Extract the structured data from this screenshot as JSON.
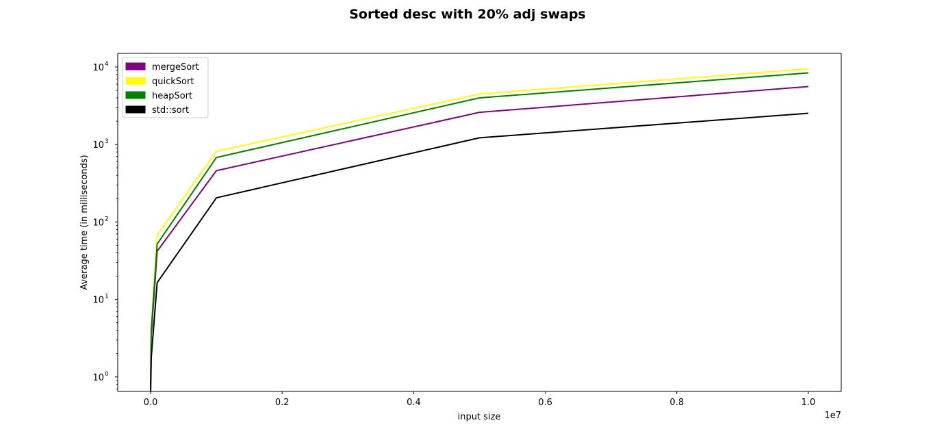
{
  "chart_data": {
    "type": "line",
    "title": "Sorted desc with 20% adj swaps",
    "xlabel": "input size",
    "ylabel": "Average time (in milliseconds)",
    "x_scale_note": "1e7",
    "y_scale": "log",
    "xlim": [
      -500000,
      10500000
    ],
    "ylim": [
      0.65,
      15000
    ],
    "x_ticks": [
      0,
      2000000,
      4000000,
      6000000,
      8000000,
      10000000
    ],
    "x_tick_labels": [
      "0.0",
      "0.2",
      "0.4",
      "0.6",
      "0.8",
      "1.0"
    ],
    "y_ticks": [
      1,
      10,
      100,
      1000,
      10000
    ],
    "y_tick_base": "10",
    "y_tick_exponents": [
      "0",
      "1",
      "2",
      "3",
      "4"
    ],
    "grid": false,
    "legend_position": "top-left",
    "x": [
      100,
      1000,
      10000,
      100000,
      1000000,
      5000000,
      10000000
    ],
    "series": [
      {
        "name": "mergeSort",
        "color": "#800080",
        "values": [
          0.7,
          0.9,
          3.5,
          42,
          460,
          2600,
          5600
        ]
      },
      {
        "name": "quickSort",
        "color": "#ffff00",
        "values": [
          0.75,
          1.0,
          4.5,
          68,
          820,
          4500,
          9500
        ]
      },
      {
        "name": "heapSort",
        "color": "#008000",
        "values": [
          0.72,
          0.95,
          4.0,
          52,
          680,
          4000,
          8400
        ]
      },
      {
        "name": "std::sort",
        "color": "#000000",
        "values": [
          0.5,
          0.7,
          1.8,
          16.5,
          205,
          1220,
          2530
        ]
      }
    ]
  }
}
